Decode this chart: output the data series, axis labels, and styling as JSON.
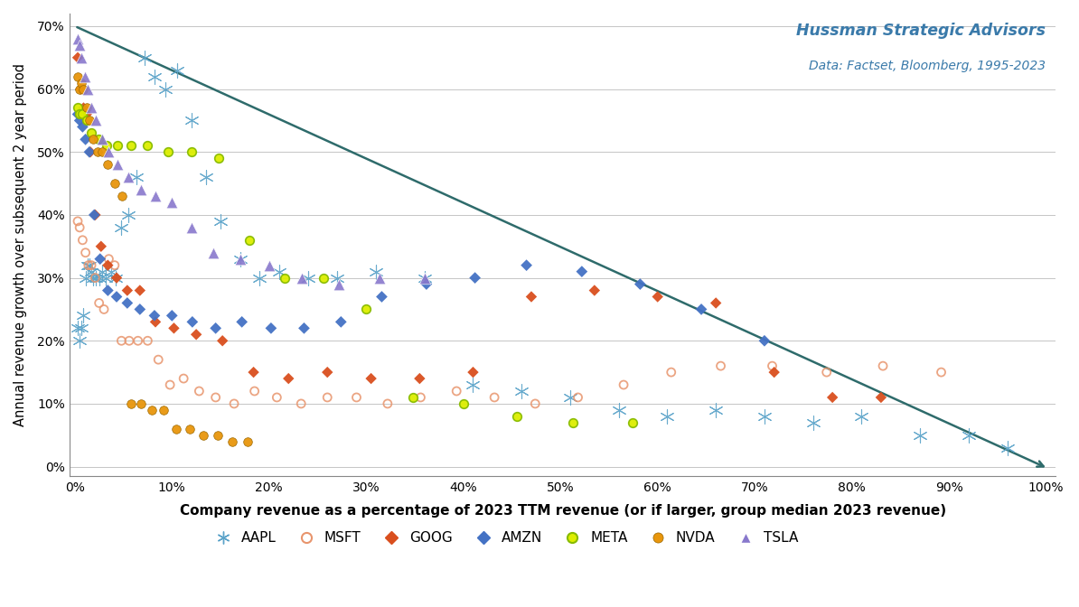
{
  "xlabel": "Company revenue as a percentage of 2023 TTM revenue (or if larger, group median 2023 revenue)",
  "ylabel": "Annual revenue growth over subsequent 2 year period",
  "annotation_title": "Hussman Strategic Advisors",
  "annotation_sub": "Data: Factset, Bloomberg, 1995-2023",
  "diagonal_color": "#2E6B6B",
  "background_color": "#FFFFFF",
  "grid_color": "#BBBBBB",
  "AAPL": {
    "color": "#5BA3C9",
    "marker": "asterisk",
    "size": 55,
    "x": [
      0.003,
      0.005,
      0.007,
      0.009,
      0.011,
      0.013,
      0.015,
      0.017,
      0.019,
      0.022,
      0.025,
      0.028,
      0.032,
      0.037,
      0.042,
      0.048,
      0.055,
      0.063,
      0.072,
      0.082,
      0.093,
      0.105,
      0.12,
      0.135,
      0.15,
      0.17,
      0.19,
      0.21,
      0.24,
      0.27,
      0.31,
      0.36,
      0.41,
      0.46,
      0.51,
      0.56,
      0.61,
      0.66,
      0.71,
      0.76,
      0.81,
      0.87,
      0.92,
      0.96
    ],
    "y": [
      0.22,
      0.2,
      0.22,
      0.24,
      0.3,
      0.32,
      0.32,
      0.31,
      0.3,
      0.3,
      0.3,
      0.31,
      0.3,
      0.31,
      0.3,
      0.38,
      0.4,
      0.46,
      0.65,
      0.62,
      0.6,
      0.63,
      0.55,
      0.46,
      0.39,
      0.33,
      0.3,
      0.31,
      0.3,
      0.3,
      0.31,
      0.3,
      0.13,
      0.12,
      0.11,
      0.09,
      0.08,
      0.09,
      0.08,
      0.07,
      0.08,
      0.05,
      0.05,
      0.03
    ]
  },
  "MSFT": {
    "color": "#E8956D",
    "marker": "open_circle",
    "size": 42,
    "x": [
      0.003,
      0.005,
      0.008,
      0.011,
      0.014,
      0.017,
      0.021,
      0.025,
      0.03,
      0.035,
      0.041,
      0.048,
      0.056,
      0.065,
      0.075,
      0.086,
      0.098,
      0.112,
      0.128,
      0.145,
      0.164,
      0.185,
      0.208,
      0.233,
      0.26,
      0.29,
      0.322,
      0.356,
      0.393,
      0.432,
      0.474,
      0.518,
      0.565,
      0.614,
      0.665,
      0.718,
      0.774,
      0.832,
      0.892
    ],
    "y": [
      0.39,
      0.38,
      0.36,
      0.34,
      0.32,
      0.32,
      0.3,
      0.26,
      0.25,
      0.33,
      0.32,
      0.2,
      0.2,
      0.2,
      0.2,
      0.17,
      0.13,
      0.14,
      0.12,
      0.11,
      0.1,
      0.12,
      0.11,
      0.1,
      0.11,
      0.11,
      0.1,
      0.11,
      0.12,
      0.11,
      0.1,
      0.11,
      0.13,
      0.15,
      0.16,
      0.16,
      0.15,
      0.16,
      0.15
    ]
  },
  "GOOG": {
    "color": "#D94F1E",
    "marker": "diamond",
    "size": 40,
    "x": [
      0.003,
      0.006,
      0.009,
      0.012,
      0.016,
      0.021,
      0.027,
      0.034,
      0.043,
      0.054,
      0.067,
      0.083,
      0.102,
      0.125,
      0.152,
      0.184,
      0.22,
      0.26,
      0.305,
      0.355,
      0.41,
      0.47,
      0.535,
      0.6,
      0.66,
      0.72,
      0.78,
      0.83
    ],
    "y": [
      0.65,
      0.6,
      0.57,
      0.56,
      0.5,
      0.4,
      0.35,
      0.32,
      0.3,
      0.28,
      0.28,
      0.23,
      0.22,
      0.21,
      0.2,
      0.15,
      0.14,
      0.15,
      0.14,
      0.14,
      0.15,
      0.27,
      0.28,
      0.27,
      0.26,
      0.15,
      0.11,
      0.11
    ]
  },
  "AMZN": {
    "color": "#4472C4",
    "marker": "diamond",
    "size": 42,
    "x": [
      0.003,
      0.005,
      0.008,
      0.011,
      0.015,
      0.02,
      0.026,
      0.034,
      0.043,
      0.054,
      0.067,
      0.082,
      0.1,
      0.121,
      0.145,
      0.172,
      0.202,
      0.236,
      0.274,
      0.316,
      0.362,
      0.412,
      0.465,
      0.522,
      0.582,
      0.645,
      0.71
    ],
    "y": [
      0.56,
      0.55,
      0.54,
      0.52,
      0.5,
      0.4,
      0.33,
      0.28,
      0.27,
      0.26,
      0.25,
      0.24,
      0.24,
      0.23,
      0.22,
      0.23,
      0.22,
      0.22,
      0.23,
      0.27,
      0.29,
      0.3,
      0.32,
      0.31,
      0.29,
      0.25,
      0.2
    ]
  },
  "META": {
    "color": "#C8D820",
    "marker": "filled_circle",
    "size": 48,
    "x": [
      0.003,
      0.005,
      0.008,
      0.012,
      0.017,
      0.024,
      0.033,
      0.044,
      0.058,
      0.075,
      0.096,
      0.12,
      0.148,
      0.18,
      0.216,
      0.256,
      0.3,
      0.348,
      0.4,
      0.455,
      0.513,
      0.574
    ],
    "y": [
      0.57,
      0.56,
      0.56,
      0.55,
      0.53,
      0.52,
      0.51,
      0.51,
      0.51,
      0.51,
      0.5,
      0.5,
      0.49,
      0.36,
      0.3,
      0.3,
      0.25,
      0.11,
      0.1,
      0.08,
      0.07,
      0.07
    ]
  },
  "NVDA": {
    "color": "#E8960C",
    "marker": "filled_circle",
    "size": 48,
    "x": [
      0.003,
      0.005,
      0.007,
      0.009,
      0.012,
      0.015,
      0.019,
      0.023,
      0.028,
      0.034,
      0.041,
      0.049,
      0.058,
      0.068,
      0.079,
      0.091,
      0.104,
      0.118,
      0.132,
      0.147,
      0.162,
      0.178
    ],
    "y": [
      0.62,
      0.6,
      0.61,
      0.6,
      0.57,
      0.55,
      0.52,
      0.5,
      0.5,
      0.48,
      0.45,
      0.43,
      0.1,
      0.1,
      0.09,
      0.09,
      0.06,
      0.06,
      0.05,
      0.05,
      0.04,
      0.04
    ]
  },
  "TSLA": {
    "color": "#8878CC",
    "marker": "triangle",
    "size": 55,
    "x": [
      0.003,
      0.005,
      0.007,
      0.01,
      0.013,
      0.017,
      0.022,
      0.028,
      0.035,
      0.044,
      0.055,
      0.068,
      0.083,
      0.1,
      0.12,
      0.143,
      0.17,
      0.2,
      0.234,
      0.272,
      0.314,
      0.36
    ],
    "y": [
      0.68,
      0.67,
      0.65,
      0.62,
      0.6,
      0.57,
      0.55,
      0.52,
      0.5,
      0.48,
      0.46,
      0.44,
      0.43,
      0.42,
      0.38,
      0.34,
      0.33,
      0.32,
      0.3,
      0.29,
      0.3,
      0.3
    ]
  }
}
